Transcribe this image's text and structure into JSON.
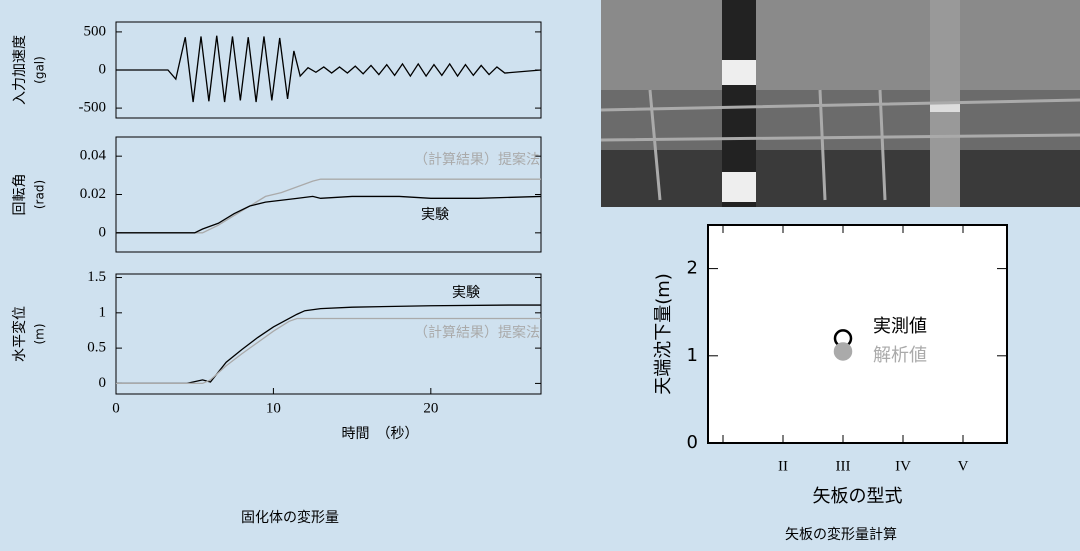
{
  "chart_data": [
    {
      "type": "line",
      "y_label": "入力加速度",
      "y_unit": "(gal)",
      "x": [
        0,
        3.3,
        3.8,
        4.4,
        4.9,
        5.4,
        5.9,
        6.4,
        6.9,
        7.4,
        7.9,
        8.4,
        8.9,
        9.4,
        9.9,
        10.4,
        10.9,
        11.3,
        11.7,
        12.2,
        12.7,
        13.2,
        13.7,
        14.2,
        14.7,
        15.2,
        15.7,
        16.2,
        16.7,
        17.2,
        17.7,
        18.2,
        18.7,
        19.2,
        19.7,
        20.2,
        20.7,
        21.2,
        21.7,
        22.2,
        22.7,
        23.2,
        23.7,
        24.2,
        24.7,
        27
      ],
      "series": [
        {
          "color": "#000000",
          "values": [
            0,
            0,
            -120,
            430,
            -420,
            440,
            -410,
            450,
            -420,
            440,
            -400,
            430,
            -420,
            440,
            -400,
            420,
            -380,
            250,
            -80,
            30,
            -30,
            40,
            -40,
            40,
            -40,
            50,
            -50,
            60,
            -60,
            70,
            -70,
            80,
            -80,
            80,
            -80,
            70,
            -70,
            80,
            -80,
            70,
            -70,
            60,
            -60,
            40,
            -40,
            0
          ]
        }
      ],
      "xlim": [
        0,
        27
      ],
      "ylim": [
        -630,
        630
      ],
      "yticks": [
        500,
        0,
        -500
      ]
    },
    {
      "type": "line",
      "y_label": "回転角",
      "y_unit": "(rad)",
      "x": [
        0,
        5,
        5.5,
        6.5,
        7.5,
        8.5,
        9.5,
        10.5,
        11.5,
        12.5,
        13,
        15,
        18,
        20,
        23,
        27
      ],
      "series": [
        {
          "name": "（計算結果）提案法",
          "color": "#aaaaaa",
          "values": [
            0,
            0,
            0,
            0.004,
            0.009,
            0.014,
            0.019,
            0.021,
            0.024,
            0.027,
            0.028,
            0.028,
            0.028,
            0.028,
            0.028,
            0.028
          ]
        },
        {
          "name": "実験",
          "color": "#000000",
          "values": [
            0,
            0,
            0.002,
            0.005,
            0.01,
            0.014,
            0.016,
            0.017,
            0.018,
            0.019,
            0.018,
            0.019,
            0.019,
            0.018,
            0.018,
            0.019
          ]
        }
      ],
      "xlim": [
        0,
        27
      ],
      "ylim": [
        -0.01,
        0.05
      ],
      "yticks": [
        0.04,
        0.02,
        0
      ]
    },
    {
      "type": "line",
      "y_label": "水平変位",
      "y_unit": "(m)",
      "x_label": "時間　（秒）",
      "x": [
        0,
        4.5,
        5.5,
        6,
        7,
        8,
        9,
        10,
        11,
        11.5,
        12,
        13,
        15,
        20,
        25,
        27
      ],
      "series": [
        {
          "name": "実験",
          "color": "#000000",
          "values": [
            0,
            0,
            0.05,
            0.02,
            0.3,
            0.48,
            0.65,
            0.8,
            0.92,
            0.98,
            1.03,
            1.06,
            1.08,
            1.1,
            1.11,
            1.11
          ]
        },
        {
          "name": "（計算結果）提案法",
          "color": "#aaaaaa",
          "values": [
            0,
            0,
            0,
            0.05,
            0.25,
            0.42,
            0.58,
            0.74,
            0.88,
            0.92,
            0.92,
            0.92,
            0.92,
            0.92,
            0.92,
            0.92
          ]
        }
      ],
      "xlim": [
        0,
        27
      ],
      "xticks": [
        0,
        10,
        20
      ],
      "ylim": [
        -0.15,
        1.55
      ],
      "yticks": [
        1.5,
        1,
        0.5,
        0
      ]
    },
    {
      "type": "scatter",
      "y_label": "天端沈下量(m)",
      "x_label": "矢板の型式",
      "categories": [
        null,
        "II",
        "III",
        "IV",
        "V"
      ],
      "series": [
        {
          "name": "実測値",
          "color": "#000000",
          "hollow": true,
          "values": [
            null,
            null,
            1.2,
            null,
            null
          ]
        },
        {
          "name": "解析値",
          "color": "#aaaaaa",
          "hollow": false,
          "values": [
            null,
            null,
            1.05,
            null,
            null
          ]
        }
      ],
      "ylim": [
        0,
        2.5
      ],
      "yticks": [
        0,
        1,
        2
      ]
    }
  ],
  "captions": {
    "left": "固化体の変形量",
    "right": "矢板の変形量計算"
  }
}
